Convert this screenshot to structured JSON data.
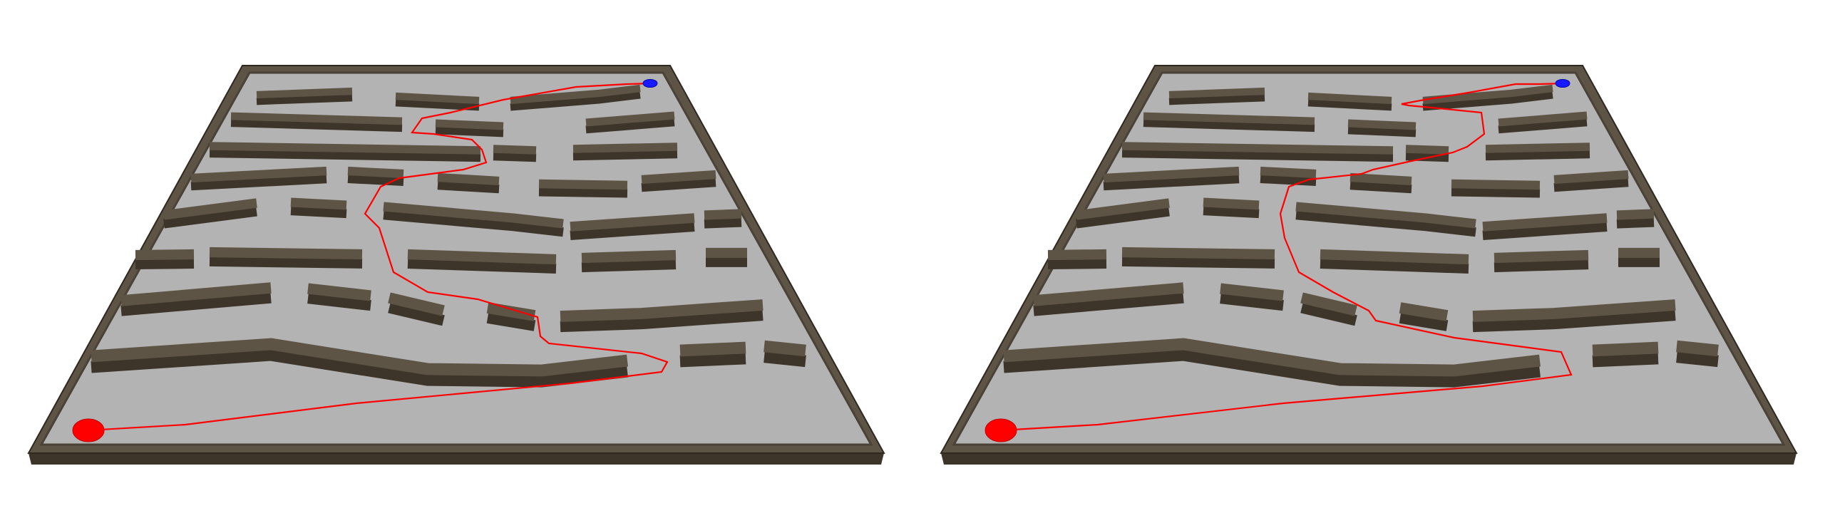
{
  "scene": {
    "description_type": "maze-path-comparison",
    "colors": {
      "background": "#ffffff",
      "floor": "#b3b3b3",
      "wall_top": "#5e5446",
      "wall_side": "#3d3529",
      "path": "#ff0000",
      "start_marker": "#ff0000",
      "goal_marker": "#1a1aff"
    },
    "panels": [
      {
        "id": "left",
        "path_variant": "route-1",
        "start_marker": "start",
        "goal_marker": "goal"
      },
      {
        "id": "right",
        "path_variant": "route-2",
        "start_marker": "start",
        "goal_marker": "goal"
      }
    ]
  }
}
